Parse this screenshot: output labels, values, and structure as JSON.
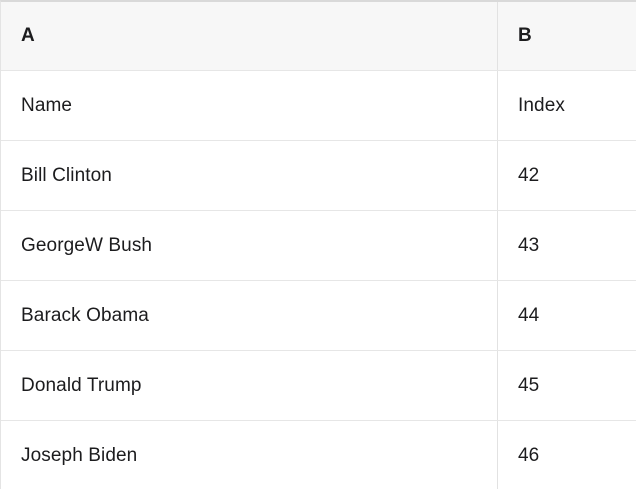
{
  "table": {
    "column_headers": [
      "A",
      "B"
    ],
    "rows": [
      [
        "Name",
        "Index"
      ],
      [
        "Bill Clinton",
        "42"
      ],
      [
        "GeorgeW Bush",
        "43"
      ],
      [
        "Barack Obama",
        "44"
      ],
      [
        "Donald Trump",
        "45"
      ],
      [
        "Joseph Biden",
        "46"
      ]
    ]
  },
  "colors": {
    "header_background": "#f7f7f7",
    "row_background": "#ffffff",
    "grid_border": "#e4e4e4",
    "top_border": "#d9d9d9",
    "text": "#1c1c1e"
  }
}
